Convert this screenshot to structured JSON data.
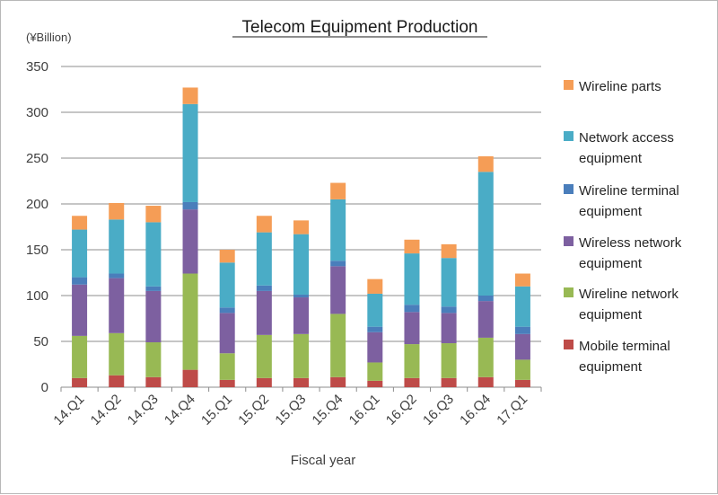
{
  "chart_data": {
    "type": "bar",
    "stacked": true,
    "title": "Telecom Equipment  Production",
    "unit_label": "(¥Billion)",
    "xlabel": "Fiscal year",
    "ylabel": "",
    "ylim": [
      0,
      350
    ],
    "yticks": [
      0,
      50,
      100,
      150,
      200,
      250,
      300,
      350
    ],
    "grid": true,
    "legend_position": "right",
    "categories": [
      "14.Q1",
      "14.Q2",
      "14.Q3",
      "14.Q4",
      "15.Q1",
      "15.Q2",
      "15.Q3",
      "15.Q4",
      "16.Q1",
      "16.Q2",
      "16.Q3",
      "16.Q4",
      "17.Q1"
    ],
    "series": [
      {
        "name": "Mobile terminal equipment",
        "legend_lines": [
          "Mobile terminal",
          "equipment"
        ],
        "color": "#be4b48",
        "values": [
          10,
          13,
          11,
          19,
          8,
          10,
          10,
          11,
          7,
          10,
          10,
          11,
          8
        ]
      },
      {
        "name": "Wireline network equipment",
        "legend_lines": [
          "Wireline network",
          "equipment"
        ],
        "color": "#98b954",
        "values": [
          46,
          46,
          38,
          105,
          29,
          47,
          48,
          69,
          20,
          37,
          38,
          43,
          22
        ]
      },
      {
        "name": "Wireless network equipment",
        "legend_lines": [
          "Wireless network",
          "equipment"
        ],
        "color": "#7d60a0",
        "values": [
          56,
          60,
          56,
          70,
          44,
          48,
          40,
          52,
          33,
          35,
          33,
          40,
          28
        ]
      },
      {
        "name": "Wireline terminal equipment",
        "legend_lines": [
          "Wireline terminal",
          "equipment"
        ],
        "color": "#4a7ebb",
        "values": [
          8,
          5,
          5,
          8,
          6,
          6,
          3,
          6,
          6,
          8,
          7,
          6,
          8
        ]
      },
      {
        "name": "Network access equipment",
        "legend_lines": [
          "Network access",
          "equipment"
        ],
        "color": "#4aacc6",
        "values": [
          52,
          59,
          70,
          107,
          49,
          58,
          66,
          67,
          36,
          56,
          53,
          135,
          44
        ]
      },
      {
        "name": "Wireline parts",
        "legend_lines": [
          "Wireline parts"
        ],
        "color": "#f59d56",
        "values": [
          15,
          18,
          18,
          18,
          14,
          18,
          15,
          18,
          16,
          15,
          15,
          17,
          14
        ]
      }
    ]
  }
}
